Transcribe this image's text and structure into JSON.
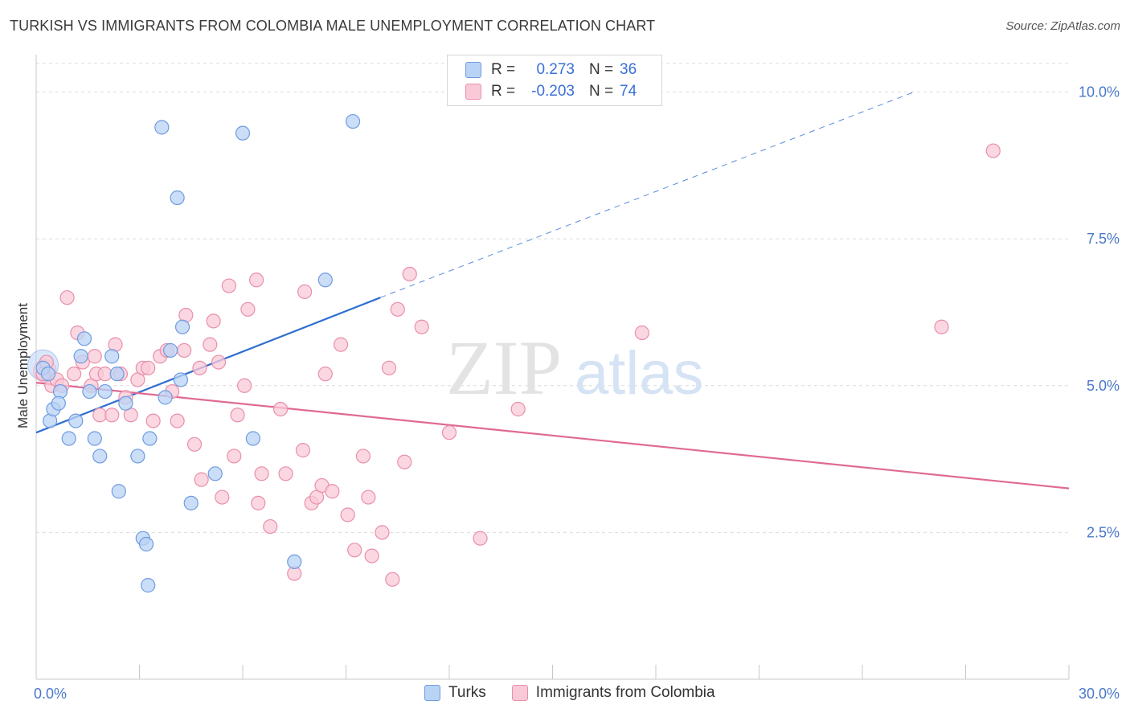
{
  "title": "TURKISH VS IMMIGRANTS FROM COLOMBIA MALE UNEMPLOYMENT CORRELATION CHART",
  "source": "Source: ZipAtlas.com",
  "watermark": {
    "zip": "ZIP",
    "atlas": "atlas"
  },
  "legend": {
    "rows": [
      {
        "r_label": "R =",
        "r_value": "0.273",
        "n_label": "N =",
        "n_value": "36"
      },
      {
        "r_label": "R =",
        "r_value": "-0.203",
        "n_label": "N =",
        "n_value": "74"
      }
    ]
  },
  "bottom_legend": [
    "Turks",
    "Immigrants from Colombia"
  ],
  "colors": {
    "turks_fill": "#b9d3f5",
    "turks_stroke": "#6f9be0",
    "turks_line": "#2f6fd1",
    "colombia_fill": "#f9c9d7",
    "colombia_stroke": "#e98fab",
    "colombia_line": "#e06a93",
    "axis_text": "#4a78c9"
  },
  "chart_data": {
    "type": "scatter",
    "title": "TURKISH VS IMMIGRANTS FROM COLOMBIA MALE UNEMPLOYMENT CORRELATION CHART",
    "xlabel": "",
    "ylabel": "Male Unemployment",
    "xlim": [
      0,
      30
    ],
    "ylim": [
      0,
      10.5
    ],
    "x_tick_labels": [
      "0.0%",
      "30.0%"
    ],
    "y_ticks": [
      2.5,
      5.0,
      7.5,
      10.0
    ],
    "y_tick_labels": [
      "2.5%",
      "5.0%",
      "7.5%",
      "10.0%"
    ],
    "grid": true,
    "legend_placement": "top-center",
    "series": [
      {
        "name": "Turks",
        "r": 0.273,
        "n": 36,
        "points": [
          [
            0.2,
            5.3
          ],
          [
            0.35,
            5.2
          ],
          [
            0.4,
            4.4
          ],
          [
            0.5,
            4.6
          ],
          [
            0.7,
            4.9
          ],
          [
            0.65,
            4.7
          ],
          [
            0.95,
            4.1
          ],
          [
            1.15,
            4.4
          ],
          [
            1.3,
            5.5
          ],
          [
            1.4,
            5.8
          ],
          [
            1.55,
            4.9
          ],
          [
            1.7,
            4.1
          ],
          [
            1.85,
            3.8
          ],
          [
            2.0,
            4.9
          ],
          [
            2.2,
            5.5
          ],
          [
            2.35,
            5.2
          ],
          [
            2.4,
            3.2
          ],
          [
            2.6,
            4.7
          ],
          [
            2.95,
            3.8
          ],
          [
            3.1,
            2.4
          ],
          [
            3.2,
            2.3
          ],
          [
            3.25,
            1.6
          ],
          [
            3.3,
            4.1
          ],
          [
            3.65,
            9.4
          ],
          [
            3.75,
            4.8
          ],
          [
            3.9,
            5.6
          ],
          [
            4.1,
            8.2
          ],
          [
            4.2,
            5.1
          ],
          [
            4.25,
            6.0
          ],
          [
            4.5,
            3.0
          ],
          [
            5.2,
            3.5
          ],
          [
            6.0,
            9.3
          ],
          [
            6.3,
            4.1
          ],
          [
            7.5,
            2.0
          ],
          [
            8.4,
            6.8
          ],
          [
            9.2,
            9.5
          ]
        ]
      },
      {
        "name": "Immigrants from Colombia",
        "r": -0.203,
        "n": 74,
        "points": [
          [
            0.2,
            5.2
          ],
          [
            0.3,
            5.4
          ],
          [
            0.45,
            5.0
          ],
          [
            0.6,
            5.1
          ],
          [
            0.75,
            5.0
          ],
          [
            0.9,
            6.5
          ],
          [
            1.1,
            5.2
          ],
          [
            1.2,
            5.9
          ],
          [
            1.35,
            5.4
          ],
          [
            1.6,
            5.0
          ],
          [
            1.75,
            5.2
          ],
          [
            1.7,
            5.5
          ],
          [
            1.85,
            4.5
          ],
          [
            2.0,
            5.2
          ],
          [
            2.2,
            4.5
          ],
          [
            2.3,
            5.7
          ],
          [
            2.45,
            5.2
          ],
          [
            2.6,
            4.8
          ],
          [
            2.75,
            4.5
          ],
          [
            2.95,
            5.1
          ],
          [
            3.1,
            5.3
          ],
          [
            3.25,
            5.3
          ],
          [
            3.4,
            4.4
          ],
          [
            3.6,
            5.5
          ],
          [
            3.8,
            5.6
          ],
          [
            3.95,
            4.9
          ],
          [
            4.1,
            4.4
          ],
          [
            4.3,
            5.6
          ],
          [
            4.35,
            6.2
          ],
          [
            4.6,
            4.0
          ],
          [
            4.75,
            5.3
          ],
          [
            4.8,
            3.4
          ],
          [
            5.05,
            5.7
          ],
          [
            5.15,
            6.1
          ],
          [
            5.3,
            5.4
          ],
          [
            5.4,
            3.1
          ],
          [
            5.6,
            6.7
          ],
          [
            5.75,
            3.8
          ],
          [
            5.85,
            4.5
          ],
          [
            6.05,
            5.0
          ],
          [
            6.15,
            6.3
          ],
          [
            6.4,
            6.8
          ],
          [
            6.45,
            3.0
          ],
          [
            6.55,
            3.5
          ],
          [
            6.8,
            2.6
          ],
          [
            7.1,
            4.6
          ],
          [
            7.25,
            3.5
          ],
          [
            7.5,
            1.8
          ],
          [
            7.75,
            3.9
          ],
          [
            7.8,
            6.6
          ],
          [
            8.0,
            3.0
          ],
          [
            8.15,
            3.1
          ],
          [
            8.3,
            3.3
          ],
          [
            8.4,
            5.2
          ],
          [
            8.6,
            3.2
          ],
          [
            8.85,
            5.7
          ],
          [
            9.05,
            2.8
          ],
          [
            9.25,
            2.2
          ],
          [
            9.5,
            3.8
          ],
          [
            9.65,
            3.1
          ],
          [
            9.75,
            2.1
          ],
          [
            10.05,
            2.5
          ],
          [
            10.25,
            5.3
          ],
          [
            10.35,
            1.7
          ],
          [
            10.5,
            6.3
          ],
          [
            10.7,
            3.7
          ],
          [
            10.85,
            6.9
          ],
          [
            11.2,
            6.0
          ],
          [
            12.0,
            4.2
          ],
          [
            12.9,
            2.4
          ],
          [
            14.0,
            4.6
          ],
          [
            17.6,
            5.9
          ],
          [
            26.3,
            6.0
          ],
          [
            27.8,
            9.0
          ]
        ]
      }
    ],
    "trend_lines": [
      {
        "series": "Turks",
        "solid": [
          [
            0,
            4.2
          ],
          [
            10.0,
            6.5
          ]
        ],
        "dashed": [
          [
            10.0,
            6.5
          ],
          [
            25.5,
            10.0
          ]
        ]
      },
      {
        "series": "Immigrants from Colombia",
        "solid": [
          [
            0,
            5.05
          ],
          [
            30,
            3.25
          ]
        ]
      }
    ]
  }
}
